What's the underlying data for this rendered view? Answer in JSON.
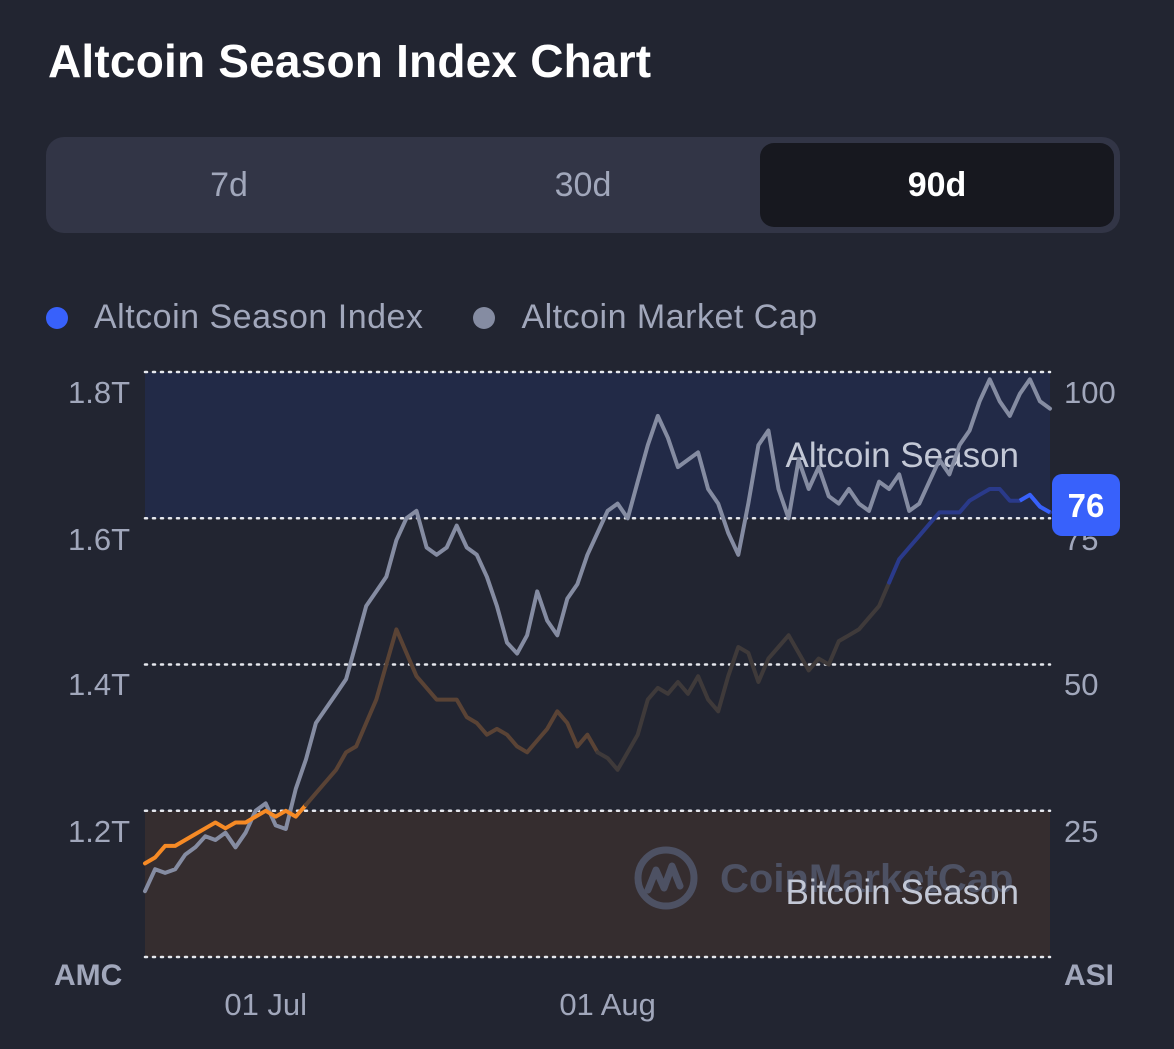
{
  "title": "Altcoin Season Index Chart",
  "tabs": [
    {
      "label": "7d",
      "active": false
    },
    {
      "label": "30d",
      "active": false
    },
    {
      "label": "90d",
      "active": true
    }
  ],
  "legend": [
    {
      "label": "Altcoin Season Index",
      "color": "#3861fb"
    },
    {
      "label": "Altcoin Market Cap",
      "color": "#858ca2"
    }
  ],
  "chart_data": {
    "type": "line",
    "title": "Altcoin Season Index Chart",
    "left_axis": {
      "label": "AMC",
      "unit": "T",
      "ticks": [
        "1.8T",
        "1.6T",
        "1.4T",
        "1.2T"
      ],
      "range": [
        1.0,
        1.8
      ]
    },
    "right_axis": {
      "label": "ASI",
      "ticks": [
        "100",
        "75",
        "50",
        "25"
      ],
      "range": [
        0,
        100
      ]
    },
    "x_labels": [
      {
        "label": "01 Jul",
        "index": 12
      },
      {
        "label": "01 Aug",
        "index": 46
      }
    ],
    "zones": [
      {
        "label": "Altcoin Season",
        "from": 75,
        "to": 100,
        "color": "#222a47"
      },
      {
        "label": "Bitcoin Season",
        "from": 0,
        "to": 25,
        "color": "#352d2f"
      }
    ],
    "current_value": "76",
    "watermark": "CoinMarketCap",
    "series": [
      {
        "name": "Altcoin Market Cap",
        "axis": "left",
        "color": "#858ca2",
        "values": [
          1.09,
          1.12,
          1.115,
          1.12,
          1.14,
          1.15,
          1.165,
          1.16,
          1.17,
          1.15,
          1.17,
          1.2,
          1.21,
          1.18,
          1.175,
          1.23,
          1.27,
          1.32,
          1.34,
          1.36,
          1.38,
          1.43,
          1.48,
          1.5,
          1.52,
          1.57,
          1.6,
          1.61,
          1.56,
          1.55,
          1.56,
          1.59,
          1.56,
          1.55,
          1.52,
          1.48,
          1.43,
          1.415,
          1.44,
          1.5,
          1.46,
          1.44,
          1.49,
          1.51,
          1.55,
          1.58,
          1.61,
          1.62,
          1.6,
          1.65,
          1.7,
          1.74,
          1.71,
          1.67,
          1.68,
          1.69,
          1.64,
          1.62,
          1.58,
          1.55,
          1.62,
          1.7,
          1.72,
          1.64,
          1.6,
          1.68,
          1.64,
          1.67,
          1.63,
          1.62,
          1.64,
          1.62,
          1.61,
          1.65,
          1.64,
          1.66,
          1.61,
          1.62,
          1.65,
          1.68,
          1.66,
          1.7,
          1.72,
          1.76,
          1.79,
          1.76,
          1.74,
          1.77,
          1.79,
          1.76,
          1.75
        ]
      },
      {
        "name": "Altcoin Season Index",
        "axis": "right",
        "values": [
          16,
          17,
          19,
          19,
          20,
          21,
          22,
          23,
          22,
          23,
          23,
          24,
          25,
          24,
          25,
          24,
          26,
          28,
          30,
          32,
          35,
          36,
          40,
          44,
          50,
          56,
          52,
          48,
          46,
          44,
          44,
          44,
          41,
          40,
          38,
          39,
          38,
          36,
          35,
          37,
          39,
          42,
          40,
          36,
          38,
          35,
          34,
          32,
          35,
          38,
          44,
          46,
          45,
          47,
          45,
          48,
          44,
          42,
          48,
          53,
          52,
          47,
          51,
          53,
          55,
          52,
          49,
          51,
          50,
          54,
          55,
          56,
          58,
          60,
          64,
          68,
          70,
          72,
          74,
          76,
          76,
          76,
          78,
          79,
          80,
          80,
          78,
          78,
          79,
          77,
          76
        ],
        "segments": [
          {
            "from": 0,
            "to": 16,
            "color": "#f68a25"
          },
          {
            "from": 16,
            "to": 45,
            "color": "#5a4335"
          },
          {
            "from": 45,
            "to": 74,
            "color": "#3f3a3a"
          },
          {
            "from": 74,
            "to": 90,
            "color": "#2a3a8a"
          }
        ]
      }
    ]
  }
}
